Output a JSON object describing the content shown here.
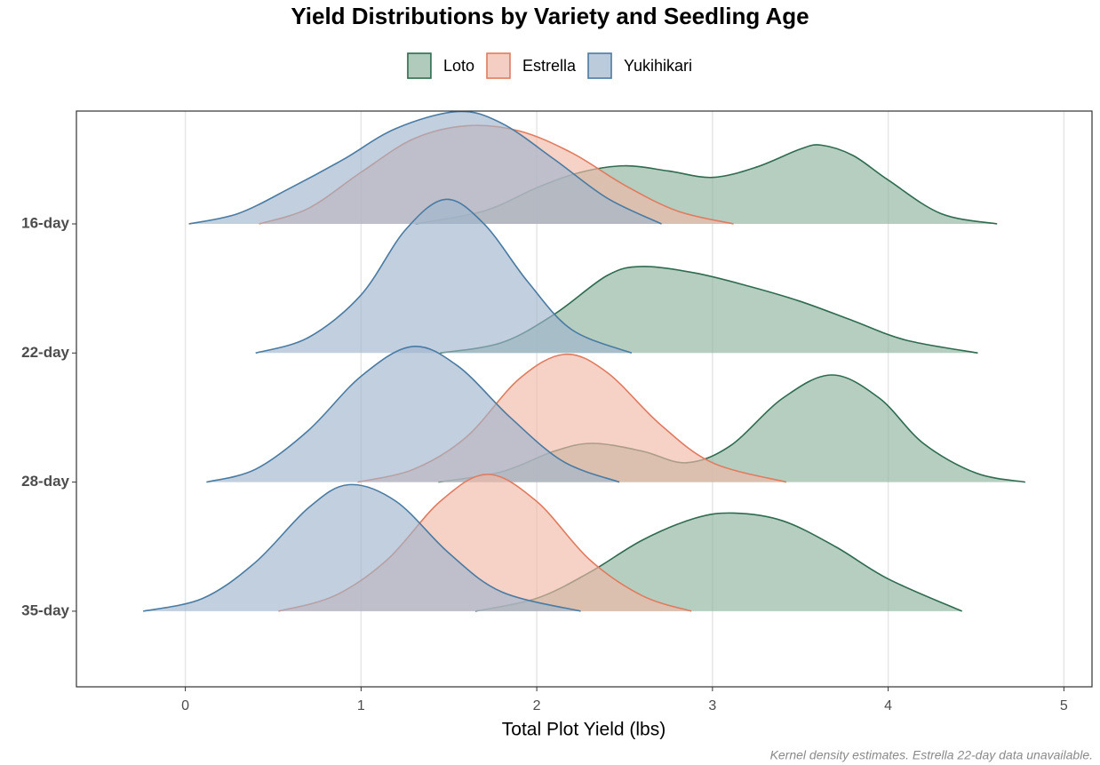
{
  "chart_data": {
    "type": "ridgeline",
    "title": "Yield Distributions by Variety and Seedling Age",
    "x_label": "Total Plot Yield (lbs)",
    "caption": "Kernel density estimates. Estrella 22-day data unavailable.",
    "categories": [
      "16-day",
      "22-day",
      "28-day",
      "35-day"
    ],
    "xlim": [
      -0.62,
      5.16
    ],
    "xticks": [
      0,
      1,
      2,
      3,
      4,
      5
    ],
    "grid": true,
    "legend": "top",
    "series": [
      {
        "name": "Loto",
        "color": "#2e6b4f",
        "fill": "#8fb39e",
        "ridges": [
          {
            "x": [
              1.31,
              1.7,
              2.0,
              2.25,
              2.5,
              2.75,
              3.0,
              3.25,
              3.5,
              3.62,
              3.8,
              4.0,
              4.3,
              4.62
            ],
            "density": [
              0,
              0.1,
              0.28,
              0.4,
              0.45,
              0.41,
              0.36,
              0.44,
              0.58,
              0.61,
              0.53,
              0.34,
              0.08,
              0
            ]
          },
          {
            "x": [
              1.45,
              1.8,
              2.1,
              2.4,
              2.6,
              2.9,
              3.2,
              3.5,
              3.8,
              4.1,
              4.51
            ],
            "density": [
              0,
              0.08,
              0.3,
              0.6,
              0.67,
              0.62,
              0.52,
              0.4,
              0.25,
              0.1,
              0
            ]
          },
          {
            "x": [
              1.44,
              1.8,
              2.1,
              2.32,
              2.6,
              2.85,
              3.1,
              3.4,
              3.68,
              3.95,
              4.2,
              4.5,
              4.78
            ],
            "density": [
              0,
              0.08,
              0.24,
              0.3,
              0.24,
              0.15,
              0.28,
              0.65,
              0.83,
              0.65,
              0.3,
              0.07,
              0
            ]
          },
          {
            "x": [
              1.65,
              2.0,
              2.3,
              2.6,
              2.9,
              3.12,
              3.4,
              3.7,
              4.0,
              4.42
            ],
            "density": [
              0,
              0.1,
              0.3,
              0.55,
              0.72,
              0.76,
              0.7,
              0.5,
              0.25,
              0
            ]
          }
        ]
      },
      {
        "name": "Estrella",
        "color": "#e07b5f",
        "fill": "#f0b9a8",
        "ridges": [
          {
            "x": [
              0.42,
              0.7,
              1.0,
              1.3,
              1.6,
              1.9,
              2.2,
              2.5,
              2.8,
              3.12
            ],
            "density": [
              0,
              0.12,
              0.4,
              0.66,
              0.76,
              0.72,
              0.55,
              0.3,
              0.1,
              0
            ]
          },
          null,
          {
            "x": [
              0.98,
              1.3,
              1.6,
              1.9,
              2.16,
              2.4,
              2.7,
              3.0,
              3.42
            ],
            "density": [
              0,
              0.1,
              0.35,
              0.8,
              0.99,
              0.85,
              0.45,
              0.15,
              0
            ]
          },
          {
            "x": [
              0.53,
              0.85,
              1.15,
              1.45,
              1.72,
              2.0,
              2.3,
              2.6,
              2.88
            ],
            "density": [
              0,
              0.12,
              0.4,
              0.85,
              1.06,
              0.85,
              0.4,
              0.12,
              0
            ]
          }
        ]
      },
      {
        "name": "Yukihikari",
        "color": "#4a7ba3",
        "fill": "#9fb5cc",
        "ridges": [
          {
            "x": [
              0.02,
              0.3,
              0.6,
              0.9,
              1.2,
              1.55,
              1.8,
              2.1,
              2.4,
              2.71
            ],
            "density": [
              0,
              0.08,
              0.28,
              0.5,
              0.74,
              0.87,
              0.78,
              0.5,
              0.2,
              0
            ]
          },
          {
            "x": [
              0.4,
              0.7,
              1.0,
              1.25,
              1.48,
              1.7,
              1.95,
              2.2,
              2.54
            ],
            "density": [
              0,
              0.12,
              0.45,
              0.95,
              1.19,
              1.0,
              0.55,
              0.18,
              0
            ]
          },
          {
            "x": [
              0.12,
              0.4,
              0.7,
              1.0,
              1.29,
              1.55,
              1.85,
              2.15,
              2.47
            ],
            "density": [
              0,
              0.1,
              0.4,
              0.82,
              1.05,
              0.9,
              0.5,
              0.16,
              0
            ]
          },
          {
            "x": [
              -0.24,
              0.1,
              0.4,
              0.7,
              0.93,
              1.2,
              1.5,
              1.8,
              2.25
            ],
            "density": [
              0,
              0.1,
              0.38,
              0.8,
              0.98,
              0.85,
              0.45,
              0.15,
              0
            ]
          }
        ]
      }
    ]
  }
}
